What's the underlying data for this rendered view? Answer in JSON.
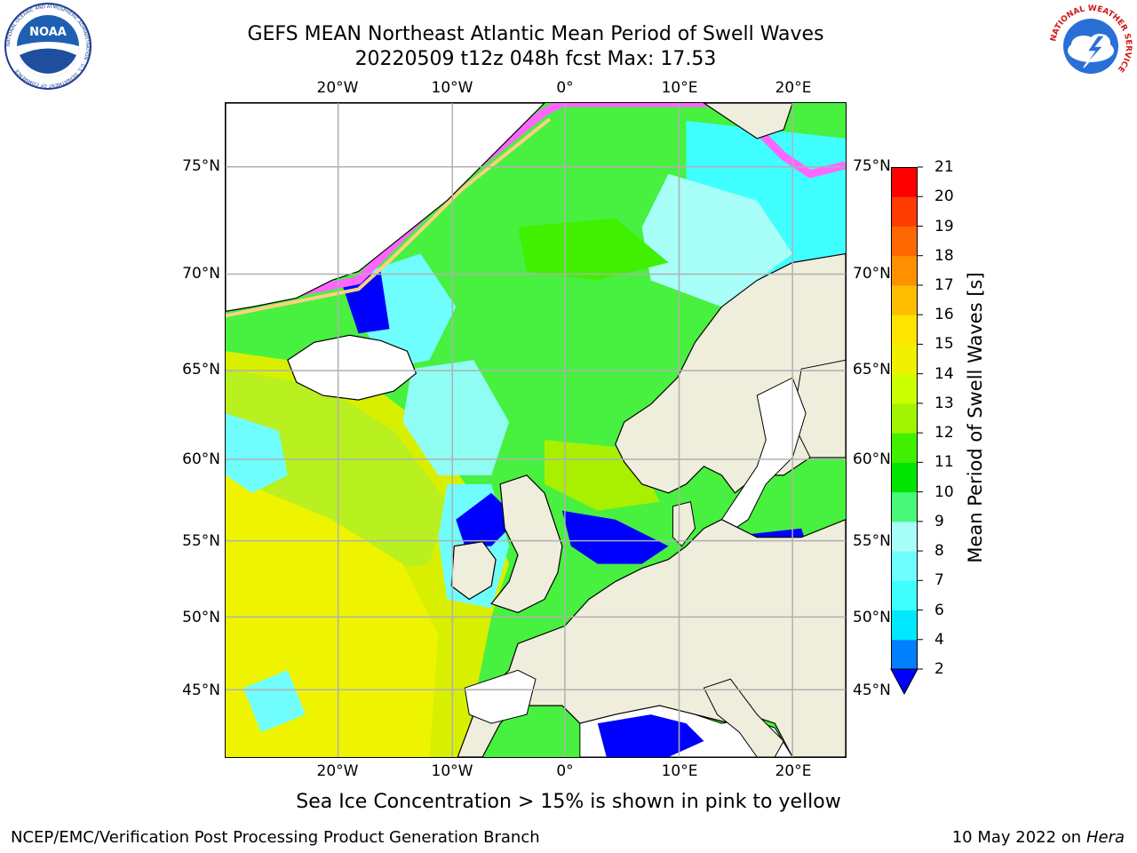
{
  "header": {
    "title_line1": "GEFS MEAN Northeast Atlantic Mean Period of Swell Waves",
    "title_line2": "20220509 t12z 048h fcst   Max: 17.53"
  },
  "logos": {
    "left": {
      "name": "noaa-logo",
      "text": "NOAA",
      "ring_text": "NATIONAL OCEANIC AND ATMOSPHERIC ADMINISTRATION · U.S. DEPARTMENT OF COMMERCE"
    },
    "right": {
      "name": "nws-logo",
      "ring_text": "NATIONAL WEATHER SERVICE"
    }
  },
  "map": {
    "lon_labels": [
      "20°W",
      "10°W",
      "0°",
      "10°E",
      "20°E"
    ],
    "lat_labels": [
      "75°N",
      "70°N",
      "65°N",
      "60°N",
      "55°N",
      "50°N",
      "45°N"
    ],
    "colors": {
      "land": "#efeddc",
      "coast": "#000000",
      "grid": "#b0b0b0"
    }
  },
  "colorbar": {
    "label": "Mean Period of Swell Waves [s]",
    "ticks": [
      "2",
      "4",
      "6",
      "7",
      "8",
      "9",
      "10",
      "11",
      "12",
      "13",
      "14",
      "15",
      "16",
      "17",
      "18",
      "19",
      "20",
      "21"
    ],
    "colors": [
      "#0000ff",
      "#0080ff",
      "#00e8ff",
      "#40ffff",
      "#70fdfd",
      "#a8fff8",
      "#48f878",
      "#00e400",
      "#40f000",
      "#a0f400",
      "#ccff00",
      "#f0f000",
      "#ffe400",
      "#ffbe00",
      "#ff9000",
      "#ff6800",
      "#ff3c00",
      "#ff0000"
    ]
  },
  "footer": {
    "note": "Sea Ice Concentration > 15% is shown in pink to yellow",
    "credit": "NCEP/EMC/Verification Post Processing Product Generation Branch",
    "date": "10 May 2022 on",
    "machine": "Hera"
  }
}
